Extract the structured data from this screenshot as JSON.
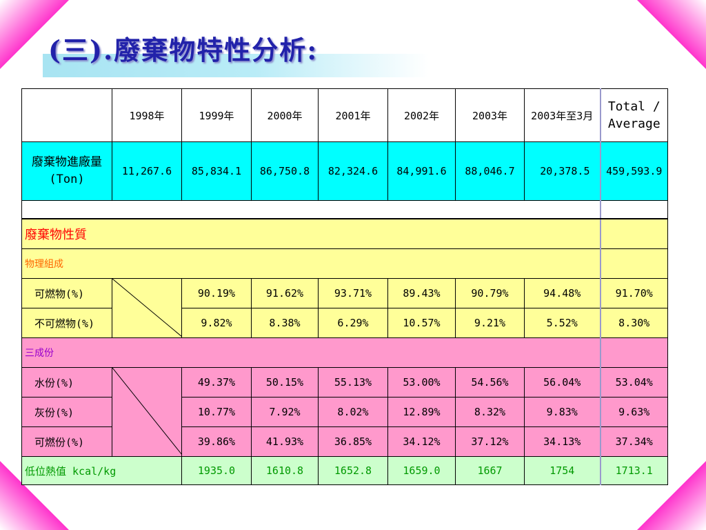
{
  "title": "(三).廢棄物特性分析:",
  "colors": {
    "corner": "#ff33cc",
    "intake_row": "#00ffff",
    "yellow_rows": "#ffff99",
    "pink_rows": "#ff99cc",
    "green_row": "#ccffcc",
    "title": "#2222aa"
  },
  "table": {
    "headers": [
      "1998年",
      "1999年",
      "2000年",
      "2001年",
      "2002年",
      "2003年",
      "2003年至3月",
      "Total /",
      "Average"
    ],
    "intake": {
      "label1": "廢棄物進廠量",
      "label2": "(Ton)",
      "values": [
        "11,267.6",
        "85,834.1",
        "86,750.8",
        "82,324.6",
        "84,991.6",
        "88,046.7",
        "20,378.5",
        "459,593.9"
      ]
    },
    "properties_label": "廢棄物性質",
    "physical_label": "物理組成",
    "physical_rows": [
      {
        "label": "可燃物(%)",
        "values": [
          "90.19%",
          "91.62%",
          "93.71%",
          "89.43%",
          "90.79%",
          "94.48%",
          "91.70%"
        ]
      },
      {
        "label": "不可燃物(%)",
        "values": [
          "9.82%",
          "8.38%",
          "6.29%",
          "10.57%",
          "9.21%",
          "5.52%",
          "8.30%"
        ]
      }
    ],
    "three_label": "三成份",
    "three_rows": [
      {
        "label": "水份(%)",
        "values": [
          "49.37%",
          "50.15%",
          "55.13%",
          "53.00%",
          "54.56%",
          "56.04%",
          "53.04%"
        ]
      },
      {
        "label": "灰份(%)",
        "values": [
          "10.77%",
          "7.92%",
          "8.02%",
          "12.89%",
          "8.32%",
          "9.83%",
          "9.63%"
        ]
      },
      {
        "label": "可燃份(%)",
        "values": [
          "39.86%",
          "41.93%",
          "36.85%",
          "34.12%",
          "37.12%",
          "34.13%",
          "37.34%"
        ]
      }
    ],
    "heat": {
      "label": "低位熱值 kcal/kg",
      "values": [
        "1935.0",
        "1610.8",
        "1652.8",
        "1659.0",
        "1667",
        "1754",
        "1713.1"
      ]
    }
  }
}
